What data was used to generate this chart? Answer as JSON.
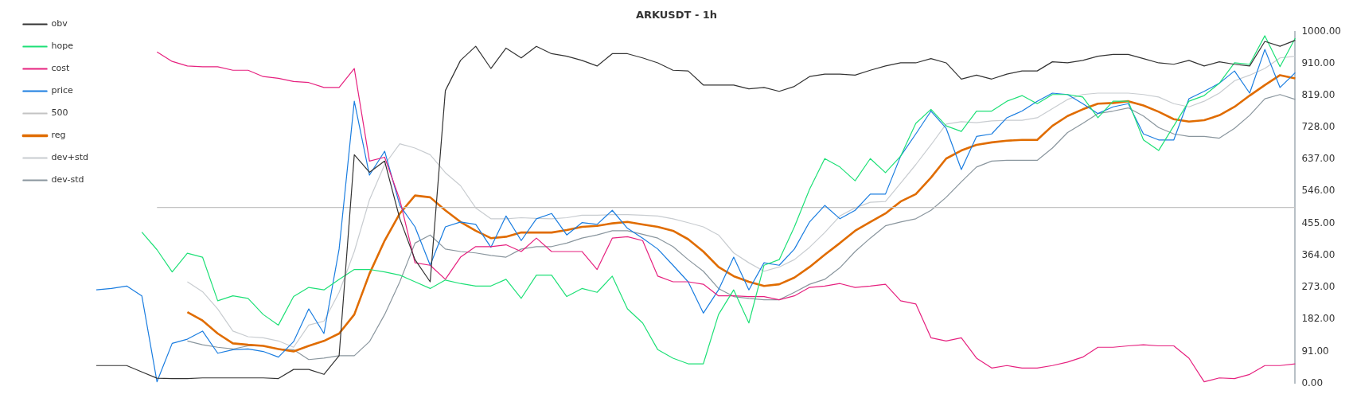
{
  "chart_data": {
    "type": "line",
    "title": "ARKUSDT - 1h",
    "categories": [
      null,
      null,
      null,
      null,
      null,
      null,
      null,
      null,
      null,
      null,
      null,
      null,
      null,
      null,
      null,
      null,
      null,
      null,
      null,
      null,
      null,
      null,
      null,
      null,
      null,
      null,
      null,
      null,
      null,
      null,
      null,
      null,
      null,
      null,
      null,
      null,
      null,
      null,
      null,
      null,
      null,
      null,
      null,
      null,
      null,
      null,
      null,
      null,
      null,
      null,
      null,
      null,
      null,
      null,
      null,
      null,
      null,
      null,
      null,
      null,
      null,
      null,
      null,
      null,
      null,
      null,
      null,
      null,
      null,
      null,
      null,
      null,
      null,
      null,
      null,
      null,
      null,
      null,
      null,
      null
    ],
    "series": [
      {
        "name": "obv",
        "color": "#333333",
        "values": [
          51,
          51,
          51,
          33,
          15,
          14,
          14,
          16,
          16,
          16,
          16,
          16,
          14,
          40,
          40,
          26,
          79,
          650,
          600,
          632,
          468,
          352,
          289,
          832,
          918,
          958,
          895,
          953,
          925,
          958,
          937,
          930,
          918,
          902,
          937,
          937,
          925,
          911,
          890,
          888,
          848,
          848,
          848,
          837,
          841,
          830,
          844,
          872,
          879,
          879,
          876,
          890,
          902,
          911,
          911,
          923,
          911,
          865,
          876,
          865,
          879,
          888,
          888,
          914,
          911,
          918,
          930,
          935,
          935,
          923,
          911,
          907,
          918,
          902,
          914,
          907,
          902,
          972,
          958,
          975
        ]
      },
      {
        "name": "hope",
        "color": "#1ee077",
        "values": [
          null,
          null,
          null,
          430,
          380,
          317,
          370,
          359,
          235,
          249,
          242,
          196,
          166,
          247,
          273,
          266,
          296,
          324,
          324,
          317,
          308,
          289,
          270,
          294,
          284,
          277,
          277,
          296,
          242,
          308,
          308,
          247,
          270,
          259,
          305,
          212,
          172,
          96,
          72,
          56,
          56,
          196,
          266,
          172,
          336,
          352,
          445,
          552,
          639,
          615,
          576,
          639,
          599,
          646,
          739,
          779,
          732,
          716,
          774,
          774,
          802,
          818,
          795,
          821,
          821,
          814,
          755,
          802,
          802,
          692,
          662,
          732,
          802,
          818,
          853,
          911,
          907,
          988,
          900,
          981
        ]
      },
      {
        "name": "cost",
        "color": "#e6217f",
        "values": [
          null,
          null,
          null,
          null,
          942,
          915,
          902,
          900,
          900,
          890,
          890,
          872,
          867,
          858,
          855,
          841,
          841,
          895,
          632,
          643,
          522,
          343,
          336,
          296,
          359,
          389,
          389,
          394,
          375,
          413,
          375,
          375,
          375,
          324,
          413,
          417,
          406,
          305,
          289,
          289,
          282,
          249,
          249,
          247,
          247,
          238,
          249,
          273,
          277,
          284,
          273,
          277,
          282,
          235,
          226,
          130,
          121,
          130,
          72,
          44,
          51,
          44,
          44,
          51,
          61,
          75,
          103,
          103,
          107,
          110,
          107,
          107,
          72,
          5,
          16,
          14,
          26,
          51,
          51,
          56
        ]
      },
      {
        "name": "price",
        "color": "#1a7de0",
        "values": [
          266,
          270,
          277,
          249,
          5,
          114,
          126,
          149,
          86,
          96,
          98,
          91,
          75,
          119,
          212,
          142,
          382,
          802,
          592,
          660,
          506,
          445,
          336,
          445,
          459,
          452,
          387,
          476,
          406,
          468,
          483,
          422,
          457,
          452,
          492,
          441,
          413,
          382,
          336,
          289,
          200,
          266,
          359,
          266,
          343,
          336,
          382,
          459,
          506,
          468,
          492,
          538,
          538,
          646,
          709,
          774,
          725,
          608,
          702,
          709,
          755,
          774,
          802,
          825,
          821,
          795,
          767,
          786,
          795,
          709,
          692,
          692,
          809,
          830,
          853,
          888,
          825,
          949,
          841,
          883
        ]
      },
      {
        "name": "500",
        "color": "#c4c4c4",
        "values": [
          null,
          null,
          null,
          null,
          500,
          500,
          500,
          500,
          500,
          500,
          500,
          500,
          500,
          500,
          500,
          500,
          500,
          500,
          500,
          500,
          500,
          500,
          500,
          500,
          500,
          500,
          500,
          500,
          500,
          500,
          500,
          500,
          500,
          500,
          500,
          500,
          500,
          500,
          500,
          500,
          500,
          500,
          500,
          500,
          500,
          500,
          500,
          500,
          500,
          500,
          500,
          500,
          500,
          500,
          500,
          500,
          500,
          500,
          500,
          500,
          500,
          500,
          500,
          500,
          500,
          500,
          500,
          500,
          500,
          500,
          500,
          500,
          500,
          500,
          500,
          500,
          500,
          500,
          500,
          500
        ]
      },
      {
        "name": "reg",
        "color": "#e06c00",
        "values": [
          null,
          null,
          null,
          null,
          null,
          null,
          203,
          179,
          142,
          114,
          110,
          107,
          98,
          91,
          107,
          121,
          142,
          196,
          312,
          406,
          483,
          534,
          529,
          492,
          459,
          434,
          413,
          417,
          429,
          429,
          429,
          436,
          445,
          448,
          455,
          459,
          452,
          445,
          434,
          410,
          375,
          331,
          305,
          289,
          277,
          282,
          301,
          331,
          366,
          399,
          434,
          459,
          483,
          517,
          538,
          585,
          639,
          662,
          678,
          685,
          690,
          692,
          692,
          732,
          760,
          779,
          795,
          797,
          802,
          790,
          772,
          751,
          744,
          748,
          762,
          786,
          818,
          848,
          876,
          867
        ]
      },
      {
        "name": "dev+std",
        "color": "#c8ccd0",
        "values": [
          null,
          null,
          null,
          null,
          null,
          null,
          289,
          261,
          212,
          149,
          133,
          130,
          121,
          103,
          166,
          177,
          259,
          375,
          522,
          622,
          681,
          669,
          650,
          599,
          562,
          499,
          468,
          468,
          471,
          469,
          468,
          471,
          478,
          478,
          480,
          480,
          478,
          476,
          468,
          457,
          445,
          422,
          371,
          343,
          319,
          331,
          352,
          387,
          429,
          476,
          499,
          515,
          517,
          569,
          622,
          678,
          737,
          744,
          741,
          746,
          748,
          748,
          755,
          781,
          807,
          821,
          825,
          825,
          825,
          821,
          814,
          795,
          786,
          802,
          825,
          860,
          876,
          895,
          925,
          930
        ]
      },
      {
        "name": "dev-std",
        "color": "#8a969e",
        "values": [
          null,
          null,
          null,
          null,
          null,
          null,
          121,
          110,
          103,
          98,
          107,
          107,
          98,
          96,
          68,
          72,
          79,
          79,
          119,
          196,
          289,
          399,
          422,
          382,
          375,
          371,
          364,
          359,
          382,
          389,
          389,
          399,
          413,
          422,
          434,
          434,
          424,
          413,
          389,
          352,
          319,
          270,
          247,
          242,
          238,
          238,
          259,
          282,
          296,
          329,
          375,
          413,
          448,
          459,
          468,
          492,
          529,
          573,
          615,
          632,
          634,
          634,
          634,
          669,
          713,
          739,
          767,
          774,
          783,
          760,
          727,
          709,
          702,
          702,
          697,
          725,
          762,
          809,
          821,
          807
        ]
      }
    ],
    "ylim": [
      0,
      1000
    ],
    "yticks": [
      {
        "value": 0,
        "label": "0.00"
      },
      {
        "value": 91,
        "label": "91.00"
      },
      {
        "value": 182,
        "label": "182.00"
      },
      {
        "value": 273,
        "label": "273.00"
      },
      {
        "value": 364,
        "label": "364.00"
      },
      {
        "value": 455,
        "label": "455.00"
      },
      {
        "value": 546,
        "label": "546.00"
      },
      {
        "value": 637,
        "label": "637.00"
      },
      {
        "value": 728,
        "label": "728.00"
      },
      {
        "value": 819,
        "label": "819.00"
      },
      {
        "value": 910,
        "label": "910.00"
      },
      {
        "value": 1000,
        "label": "1000.00"
      }
    ],
    "tick_labels": "y",
    "grid": false,
    "legend": "left",
    "marker": "none",
    "line_style": "solid"
  }
}
